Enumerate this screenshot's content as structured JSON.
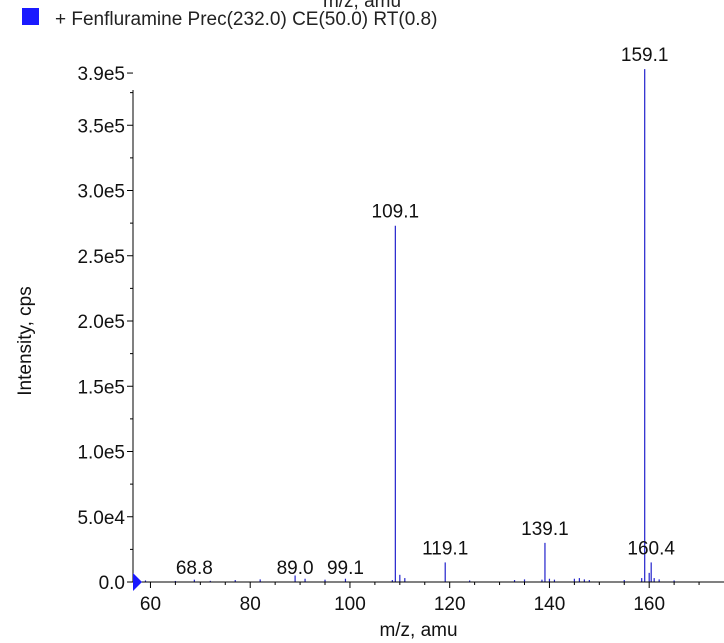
{
  "header": {
    "top_label": "m/z, amu"
  },
  "legend": {
    "label": "+ Fenfluramine Prec(232.0) CE(50.0) RT(0.8)",
    "swatch_color": "#1a1aff"
  },
  "colors": {
    "series": "#2222cc",
    "marker": "#1a1aff",
    "axis": "#000000"
  },
  "chart_data": {
    "type": "bar",
    "title": "",
    "xlabel": "m/z, amu",
    "ylabel": "Intensity, cps",
    "xlim": [
      56.5,
      175
    ],
    "ylim": [
      0,
      400000
    ],
    "x_ticks": [
      {
        "value": 60,
        "label": "60"
      },
      {
        "value": 80,
        "label": "80"
      },
      {
        "value": 100,
        "label": "100"
      },
      {
        "value": 120,
        "label": "120"
      },
      {
        "value": 140,
        "label": "140"
      },
      {
        "value": 160,
        "label": "160"
      }
    ],
    "y_ticks": [
      {
        "value": 0,
        "label": "0.0"
      },
      {
        "value": 50000,
        "label": "5.0e4"
      },
      {
        "value": 100000,
        "label": "1.0e5"
      },
      {
        "value": 150000,
        "label": "1.5e5"
      },
      {
        "value": 200000,
        "label": "2.0e5"
      },
      {
        "value": 250000,
        "label": "2.5e5"
      },
      {
        "value": 300000,
        "label": "3.0e5"
      },
      {
        "value": 350000,
        "label": "3.5e5"
      },
      {
        "value": 390000,
        "label": "3.9e5"
      }
    ],
    "x": [
      59.0,
      65.0,
      68.8,
      72.0,
      77.0,
      82.0,
      89.0,
      91.0,
      95.0,
      99.1,
      108.5,
      109.1,
      110.0,
      111.0,
      119.1,
      124.0,
      133.0,
      135.0,
      138.5,
      139.1,
      140.0,
      141.0,
      145.0,
      146.0,
      147.0,
      148.0,
      155.0,
      158.5,
      159.1,
      160.0,
      160.4,
      161.0,
      162.0,
      165.0
    ],
    "values": [
      1200,
      800,
      1800,
      900,
      1500,
      2000,
      5000,
      2500,
      1800,
      2500,
      1500,
      273000,
      5500,
      3000,
      15000,
      1200,
      1500,
      2000,
      1800,
      30000,
      2500,
      1800,
      2500,
      3000,
      2000,
      1500,
      1500,
      3000,
      393000,
      7000,
      15000,
      3000,
      2000,
      1200
    ],
    "peak_labels": [
      {
        "x": 68.8,
        "y": 1800,
        "label": "68.8"
      },
      {
        "x": 89.0,
        "y": 5000,
        "label": "89.0"
      },
      {
        "x": 99.1,
        "y": 2500,
        "label": "99.1"
      },
      {
        "x": 109.1,
        "y": 273000,
        "label": "109.1"
      },
      {
        "x": 119.1,
        "y": 15000,
        "label": "119.1"
      },
      {
        "x": 139.1,
        "y": 30000,
        "label": "139.1"
      },
      {
        "x": 159.1,
        "y": 393000,
        "label": "159.1"
      },
      {
        "x": 160.4,
        "y": 15000,
        "label": "160.4"
      }
    ],
    "grid": false
  }
}
